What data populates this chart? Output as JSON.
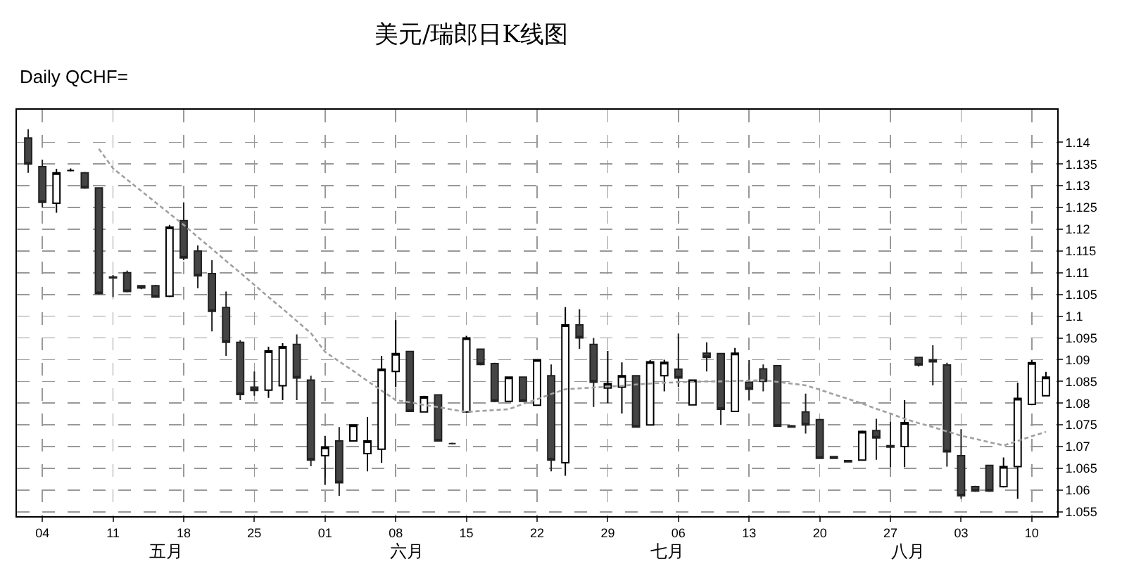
{
  "chart_data": {
    "type": "candlestick",
    "title": "美元/瑞郎日K线图",
    "subtitle": "Daily QCHF=",
    "categories": [
      null,
      "04",
      null,
      null,
      null,
      null,
      "11",
      null,
      null,
      null,
      null,
      "18",
      null,
      null,
      null,
      null,
      "25",
      null,
      null,
      null,
      null,
      "01",
      null,
      null,
      null,
      null,
      "08",
      null,
      null,
      null,
      null,
      "15",
      null,
      null,
      null,
      null,
      "22",
      null,
      null,
      null,
      null,
      "29",
      null,
      null,
      null,
      null,
      "06",
      null,
      null,
      null,
      null,
      "13",
      null,
      null,
      null,
      null,
      "20",
      null,
      null,
      null,
      null,
      "27",
      null,
      null,
      null,
      null,
      "03",
      null,
      null,
      null,
      null,
      "10",
      null
    ],
    "ohlc": [
      [
        1.141,
        1.143,
        1.133,
        1.135
      ],
      [
        1.1344,
        1.136,
        1.125,
        1.1262
      ],
      [
        1.126,
        1.1339,
        1.1238,
        1.133
      ],
      [
        1.1335,
        1.134,
        1.1333,
        1.1335
      ],
      [
        1.133,
        1.1332,
        1.1293,
        1.1295
      ],
      [
        1.1295,
        1.1296,
        1.105,
        1.1052
      ],
      [
        1.109,
        1.1095,
        1.1044,
        1.1088
      ],
      [
        1.11,
        1.1105,
        1.1055,
        1.1057
      ],
      [
        1.107,
        1.107,
        1.1062,
        1.1065
      ],
      [
        1.107,
        1.1072,
        1.1043,
        1.1044
      ],
      [
        1.1046,
        1.121,
        1.1044,
        1.1205
      ],
      [
        1.122,
        1.1262,
        1.1129,
        1.1134
      ],
      [
        1.115,
        1.1163,
        1.1064,
        1.1093
      ],
      [
        1.1098,
        1.1129,
        1.0965,
        1.1011
      ],
      [
        1.102,
        1.1057,
        1.0909,
        1.094
      ],
      [
        1.094,
        1.0945,
        1.0807,
        1.082
      ],
      [
        1.0837,
        1.0873,
        1.0817,
        1.0829
      ],
      [
        1.083,
        1.093,
        1.0812,
        1.092
      ],
      [
        1.084,
        1.0938,
        1.0807,
        1.093
      ],
      [
        1.0935,
        1.0958,
        1.0807,
        1.0858
      ],
      [
        1.0853,
        1.0863,
        1.0655,
        1.0669
      ],
      [
        1.0679,
        1.0725,
        1.0612,
        1.0699
      ],
      [
        1.0713,
        1.0745,
        1.0587,
        1.0617
      ],
      [
        1.0713,
        1.075,
        1.0712,
        1.075
      ],
      [
        1.0684,
        1.0768,
        1.0643,
        1.0713
      ],
      [
        1.0694,
        1.0909,
        1.0663,
        1.0878
      ],
      [
        1.0873,
        1.0991,
        1.0837,
        1.0914
      ],
      [
        1.0919,
        1.092,
        1.078,
        1.0781
      ],
      [
        1.078,
        1.0817,
        1.078,
        1.0815
      ],
      [
        1.0819,
        1.082,
        1.0712,
        1.0713
      ],
      [
        1.0707,
        1.0709,
        1.0705,
        1.0707
      ],
      [
        1.078,
        1.0955,
        1.0778,
        1.095
      ],
      [
        1.0924,
        1.0926,
        1.0887,
        1.0889
      ],
      [
        1.0891,
        1.0893,
        1.0802,
        1.0804
      ],
      [
        1.0804,
        1.086,
        1.0804,
        1.086
      ],
      [
        1.086,
        1.086,
        1.0804,
        1.0804
      ],
      [
        1.0795,
        1.0901,
        1.0794,
        1.09
      ],
      [
        1.0863,
        1.0889,
        1.0643,
        1.0669
      ],
      [
        1.0663,
        1.1021,
        1.0633,
        1.098
      ],
      [
        1.098,
        1.1016,
        1.0925,
        1.095
      ],
      [
        1.0935,
        1.095,
        1.0791,
        1.0848
      ],
      [
        1.0835,
        1.092,
        1.08,
        1.0845
      ],
      [
        1.0837,
        1.0894,
        1.0776,
        1.0863
      ],
      [
        1.0863,
        1.0863,
        1.0745,
        1.0745
      ],
      [
        1.075,
        1.0899,
        1.075,
        1.0895
      ],
      [
        1.0863,
        1.09,
        1.0827,
        1.0894
      ],
      [
        1.0878,
        1.096,
        1.0837,
        1.0858
      ],
      [
        1.0796,
        1.0853,
        1.0796,
        1.0853
      ],
      [
        1.0915,
        1.094,
        1.0873,
        1.0905
      ],
      [
        1.0914,
        1.0914,
        1.075,
        1.0786
      ],
      [
        1.0781,
        1.0927,
        1.0781,
        1.0915
      ],
      [
        1.0848,
        1.0899,
        1.0807,
        1.0832
      ],
      [
        1.0879,
        1.0889,
        1.0827,
        1.085
      ],
      [
        1.0886,
        1.0886,
        1.0747,
        1.0747
      ],
      [
        1.0748,
        1.075,
        1.0744,
        1.0745
      ],
      [
        1.078,
        1.0822,
        1.073,
        1.075
      ],
      [
        1.0762,
        1.0764,
        1.0673,
        1.0673
      ],
      [
        1.0677,
        1.0678,
        1.0672,
        1.0673
      ],
      [
        1.0668,
        1.0668,
        1.0664,
        1.0665
      ],
      [
        1.0669,
        1.0737,
        1.0669,
        1.0735
      ],
      [
        1.0737,
        1.0764,
        1.067,
        1.072
      ],
      [
        1.0702,
        1.0757,
        1.0653,
        1.0699
      ],
      [
        1.07,
        1.0807,
        1.0653,
        1.0755
      ],
      [
        1.0905,
        1.0906,
        1.0884,
        1.0888
      ],
      [
        1.09,
        1.0933,
        1.0841,
        1.0895
      ],
      [
        1.0888,
        1.0893,
        1.0654,
        1.0688
      ],
      [
        1.0679,
        1.074,
        1.058,
        1.0587
      ],
      [
        1.0608,
        1.061,
        1.0596,
        1.0598
      ],
      [
        1.0657,
        1.0657,
        1.0596,
        1.0598
      ],
      [
        1.0608,
        1.0675,
        1.0606,
        1.0654
      ],
      [
        1.0654,
        1.0847,
        1.058,
        1.0811
      ],
      [
        1.0797,
        1.0899,
        1.0795,
        1.0893
      ],
      [
        1.0817,
        1.0872,
        1.0817,
        1.086
      ]
    ],
    "series": [
      {
        "type": "line",
        "color": "#a0a0a0",
        "line_style": "dashed",
        "values": [
          null,
          null,
          null,
          null,
          null,
          1.1385,
          1.134,
          1.1314,
          1.1288,
          1.1262,
          1.1236,
          1.121,
          1.1182,
          1.1155,
          1.1127,
          1.11,
          1.1072,
          1.1044,
          1.1017,
          1.0989,
          1.0961,
          1.0918,
          1.0896,
          1.0874,
          1.0851,
          1.0829,
          1.0807,
          1.0802,
          1.0796,
          1.0791,
          1.0785,
          1.078,
          1.0782,
          1.0784,
          1.0786,
          1.0798,
          1.0809,
          1.0821,
          1.0832,
          1.0834,
          1.0836,
          1.0838,
          1.084,
          1.0843,
          1.0845,
          1.0847,
          1.0848,
          1.0849,
          1.085,
          1.085,
          1.0851,
          1.0852,
          1.0853,
          1.0849,
          1.0845,
          1.0841,
          1.0831,
          1.082,
          1.081,
          1.0799,
          1.0787,
          1.0776,
          1.0764,
          1.0754,
          1.0745,
          1.0735,
          1.0725,
          1.0718,
          1.071,
          1.0703,
          1.0713,
          1.0724,
          1.0734
        ]
      }
    ],
    "ylim": [
      1.054,
      1.1475
    ],
    "yticks": [
      1.055,
      1.06,
      1.065,
      1.07,
      1.075,
      1.08,
      1.085,
      1.09,
      1.095,
      1.1,
      1.105,
      1.11,
      1.115,
      1.12,
      1.125,
      1.13,
      1.135,
      1.14
    ],
    "grid": true,
    "annotations": [
      "五月",
      "六月",
      "七月",
      "八月"
    ]
  }
}
